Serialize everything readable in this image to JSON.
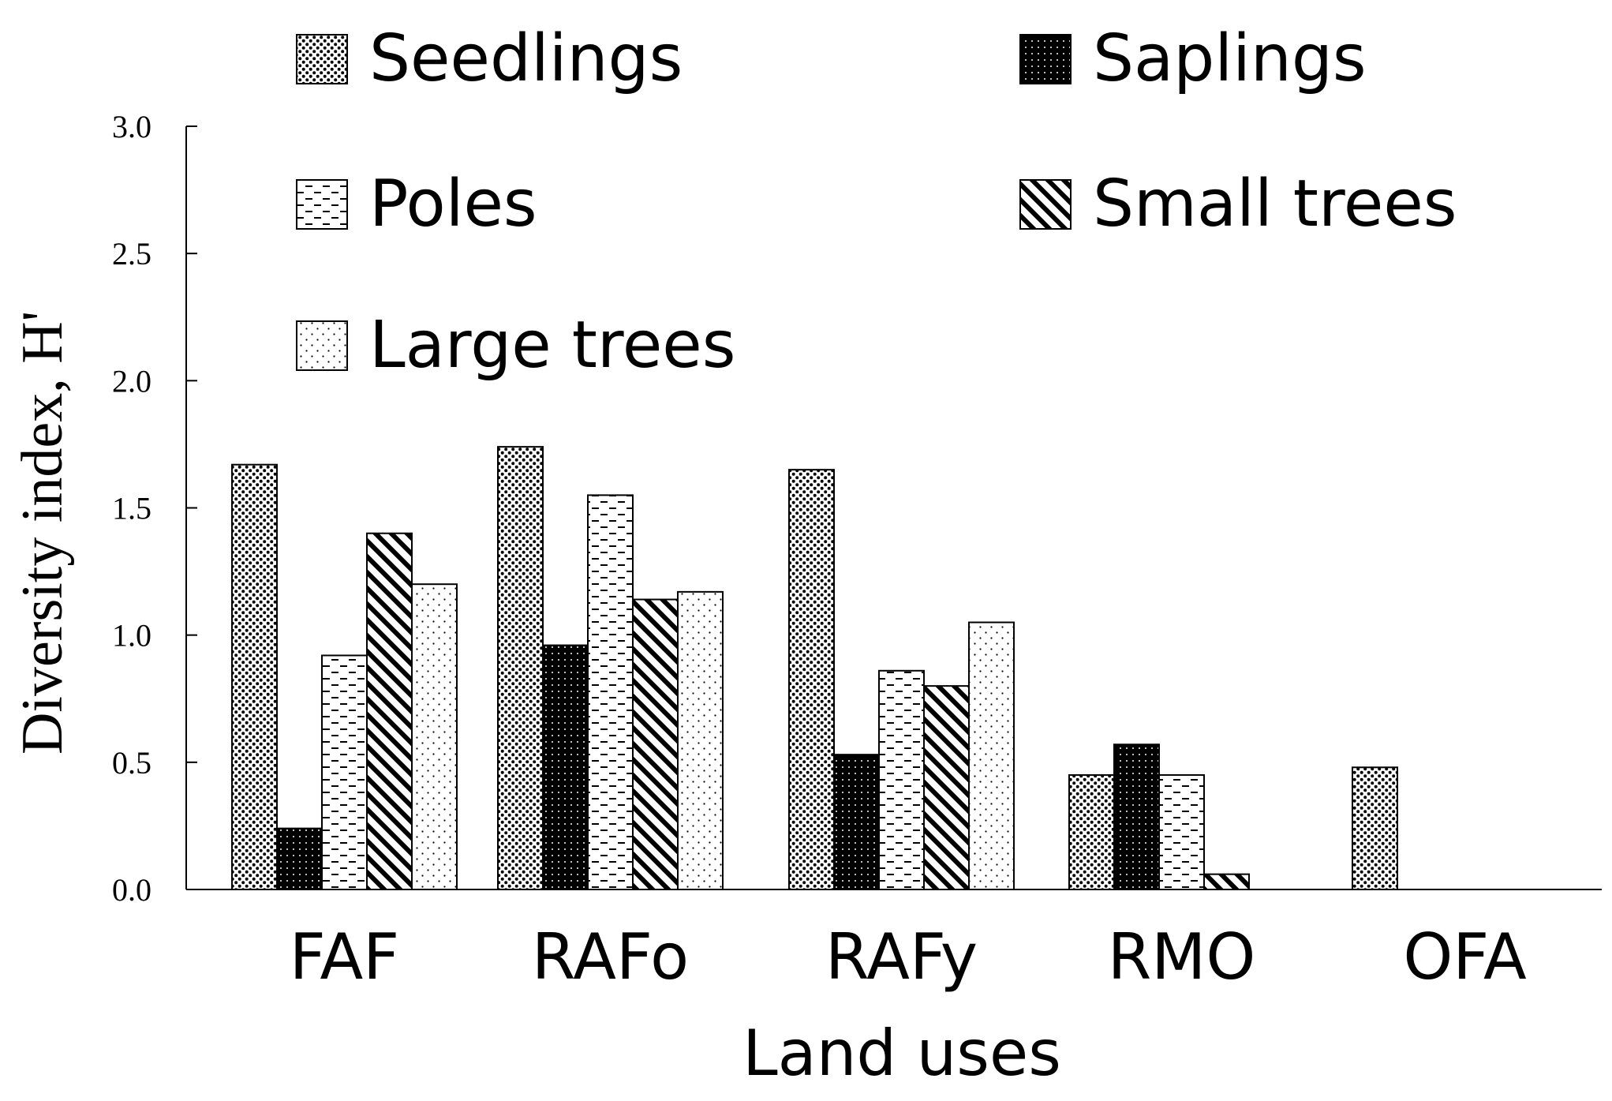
{
  "chart_data": {
    "type": "bar",
    "title": "",
    "xlabel": "Land uses",
    "ylabel": "Diversity index, H'",
    "ylim": [
      0,
      3.0
    ],
    "yticks": [
      "0.0",
      "0.5",
      "1.0",
      "1.5",
      "2.0",
      "2.5",
      "3.0"
    ],
    "categories": [
      "FAF",
      "RAFo",
      "RAFy",
      "RMO",
      "OFA"
    ],
    "legend_position": "top",
    "series": [
      {
        "name": "Seedlings",
        "pattern": "dense-dots",
        "values": [
          1.67,
          1.74,
          1.65,
          0.45,
          0.48
        ]
      },
      {
        "name": "Saplings",
        "pattern": "dark-dots",
        "values": [
          0.24,
          0.96,
          0.53,
          0.57,
          0
        ]
      },
      {
        "name": "Poles",
        "pattern": "horizontal-dash",
        "values": [
          0.92,
          1.55,
          0.86,
          0.45,
          0
        ]
      },
      {
        "name": "Small trees",
        "pattern": "diagonal-lines",
        "values": [
          1.4,
          1.14,
          0.8,
          0.06,
          0
        ]
      },
      {
        "name": "Large trees",
        "pattern": "sparse-dots",
        "values": [
          1.2,
          1.17,
          1.05,
          0,
          0
        ]
      }
    ]
  }
}
